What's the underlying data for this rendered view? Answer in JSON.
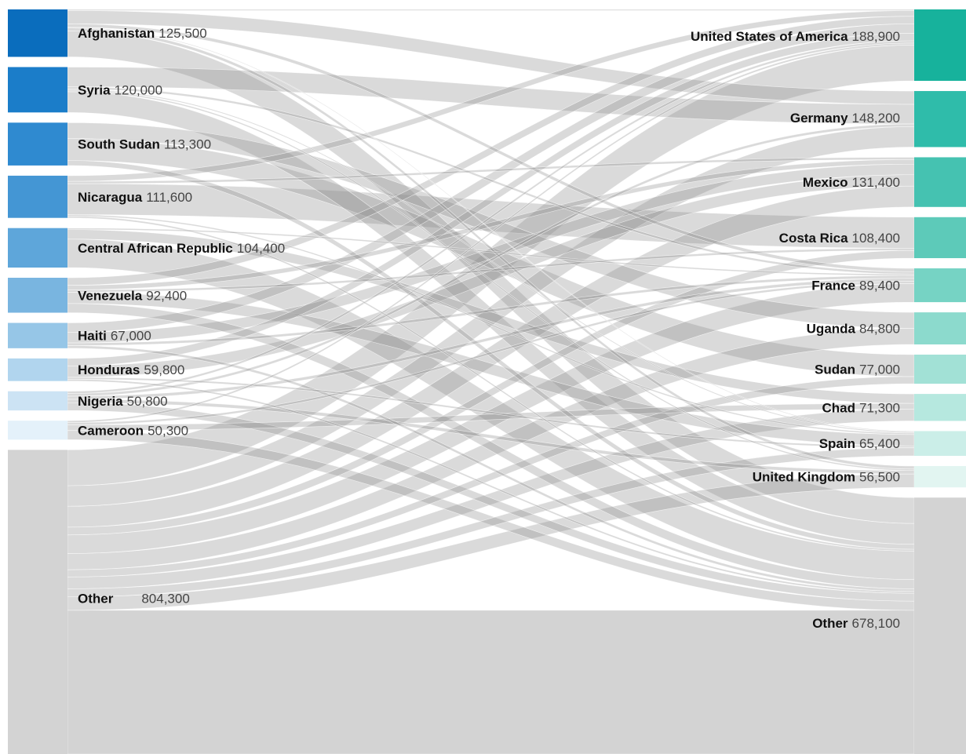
{
  "chart_data": {
    "type": "sankey",
    "title": "",
    "sources": [
      {
        "name": "Afghanistan",
        "value_label": "125,500",
        "value": 125500,
        "color": "#0a6dbd"
      },
      {
        "name": "Syria",
        "value_label": "120,000",
        "value": 120000,
        "color": "#1b7dc9"
      },
      {
        "name": "South Sudan",
        "value_label": "113,300",
        "value": 113300,
        "color": "#2f8ad0"
      },
      {
        "name": "Nicaragua",
        "value_label": "111,600",
        "value": 111600,
        "color": "#4496d4"
      },
      {
        "name": "Central African Republic",
        "value_label": "104,400",
        "value": 104400,
        "color": "#5ea6da"
      },
      {
        "name": "Venezuela",
        "value_label": "92,400",
        "value": 92400,
        "color": "#79b5e0"
      },
      {
        "name": "Haiti",
        "value_label": "67,000",
        "value": 67000,
        "color": "#96c6e7"
      },
      {
        "name": "Honduras",
        "value_label": "59,800",
        "value": 59800,
        "color": "#b1d5ee"
      },
      {
        "name": "Nigeria",
        "value_label": "50,800",
        "value": 50800,
        "color": "#cce3f4"
      },
      {
        "name": "Cameroon",
        "value_label": "50,300",
        "value": 50300,
        "color": "#e4f1fa"
      },
      {
        "name": "Other",
        "value_label": "804,300",
        "value": 804300,
        "color": "#d3d3d3"
      }
    ],
    "targets": [
      {
        "name": "United States of America",
        "value_label": "188,900",
        "value": 188900,
        "color": "#17b29c"
      },
      {
        "name": "Germany",
        "value_label": "148,200",
        "value": 148200,
        "color": "#2fbcaa"
      },
      {
        "name": "Mexico",
        "value_label": "131,400",
        "value": 131400,
        "color": "#45c2b1"
      },
      {
        "name": "Costa Rica",
        "value_label": "108,400",
        "value": 108400,
        "color": "#5dcab9"
      },
      {
        "name": "France",
        "value_label": "89,400",
        "value": 89400,
        "color": "#76d3c4"
      },
      {
        "name": "Uganda",
        "value_label": "84,800",
        "value": 84800,
        "color": "#8cdacd"
      },
      {
        "name": "Sudan",
        "value_label": "77,000",
        "value": 77000,
        "color": "#a2e1d6"
      },
      {
        "name": "Chad",
        "value_label": "71,300",
        "value": 71300,
        "color": "#b6e8df"
      },
      {
        "name": "Spain",
        "value_label": "65,400",
        "value": 65400,
        "color": "#cbeee8"
      },
      {
        "name": "United Kingdom",
        "value_label": "56,500",
        "value": 56500,
        "color": "#e2f5f1"
      },
      {
        "name": "Other",
        "value_label": "678,100",
        "value": 678100,
        "color": "#d3d3d3"
      }
    ],
    "flows": [
      {
        "from": "Afghanistan",
        "to": "Germany",
        "value": 35000
      },
      {
        "from": "Afghanistan",
        "to": "France",
        "value": 9000
      },
      {
        "from": "Afghanistan",
        "to": "United Kingdom",
        "value": 8000
      },
      {
        "from": "Afghanistan",
        "to": "United States of America",
        "value": 3000
      },
      {
        "from": "Afghanistan",
        "to": "Spain",
        "value": 2000
      },
      {
        "from": "Afghanistan",
        "to": "Other",
        "value": 68500
      },
      {
        "from": "Syria",
        "to": "Germany",
        "value": 52000
      },
      {
        "from": "Syria",
        "to": "France",
        "value": 6000
      },
      {
        "from": "Syria",
        "to": "United Kingdom",
        "value": 4000
      },
      {
        "from": "Syria",
        "to": "Spain",
        "value": 3000
      },
      {
        "from": "Syria",
        "to": "Other",
        "value": 55000
      },
      {
        "from": "South Sudan",
        "to": "Uganda",
        "value": 42000
      },
      {
        "from": "South Sudan",
        "to": "Sudan",
        "value": 58000
      },
      {
        "from": "South Sudan",
        "to": "Other",
        "value": 13300
      },
      {
        "from": "Nicaragua",
        "to": "Costa Rica",
        "value": 82000
      },
      {
        "from": "Nicaragua",
        "to": "United States of America",
        "value": 15000
      },
      {
        "from": "Nicaragua",
        "to": "Mexico",
        "value": 6000
      },
      {
        "from": "Nicaragua",
        "to": "Spain",
        "value": 4000
      },
      {
        "from": "Nicaragua",
        "to": "Other",
        "value": 4600
      },
      {
        "from": "Central African Republic",
        "to": "Chad",
        "value": 25000
      },
      {
        "from": "Central African Republic",
        "to": "France",
        "value": 4000
      },
      {
        "from": "Central African Republic",
        "to": "Other",
        "value": 75400
      },
      {
        "from": "Venezuela",
        "to": "Spain",
        "value": 30000
      },
      {
        "from": "Venezuela",
        "to": "United States of America",
        "value": 20000
      },
      {
        "from": "Venezuela",
        "to": "Mexico",
        "value": 12000
      },
      {
        "from": "Venezuela",
        "to": "Costa Rica",
        "value": 6000
      },
      {
        "from": "Venezuela",
        "to": "Other",
        "value": 24400
      },
      {
        "from": "Haiti",
        "to": "United States of America",
        "value": 25000
      },
      {
        "from": "Haiti",
        "to": "Mexico",
        "value": 28000
      },
      {
        "from": "Haiti",
        "to": "France",
        "value": 7000
      },
      {
        "from": "Haiti",
        "to": "Other",
        "value": 7000
      },
      {
        "from": "Honduras",
        "to": "Mexico",
        "value": 30000
      },
      {
        "from": "Honduras",
        "to": "United States of America",
        "value": 20000
      },
      {
        "from": "Honduras",
        "to": "Spain",
        "value": 5000
      },
      {
        "from": "Honduras",
        "to": "Other",
        "value": 4800
      },
      {
        "from": "Nigeria",
        "to": "United Kingdom",
        "value": 9000
      },
      {
        "from": "Nigeria",
        "to": "France",
        "value": 8000
      },
      {
        "from": "Nigeria",
        "to": "Germany",
        "value": 7000
      },
      {
        "from": "Nigeria",
        "to": "United States of America",
        "value": 6000
      },
      {
        "from": "Nigeria",
        "to": "Other",
        "value": 20800
      },
      {
        "from": "Cameroon",
        "to": "Chad",
        "value": 15000
      },
      {
        "from": "Cameroon",
        "to": "France",
        "value": 6000
      },
      {
        "from": "Cameroon",
        "to": "United States of America",
        "value": 5000
      },
      {
        "from": "Cameroon",
        "to": "Other",
        "value": 24300
      },
      {
        "from": "Other",
        "to": "United States of America",
        "value": 94900
      },
      {
        "from": "Other",
        "to": "Germany",
        "value": 54200
      },
      {
        "from": "Other",
        "to": "Mexico",
        "value": 55400
      },
      {
        "from": "Other",
        "to": "Costa Rica",
        "value": 20400
      },
      {
        "from": "Other",
        "to": "France",
        "value": 49400
      },
      {
        "from": "Other",
        "to": "Uganda",
        "value": 42800
      },
      {
        "from": "Other",
        "to": "Sudan",
        "value": 19000
      },
      {
        "from": "Other",
        "to": "Chad",
        "value": 31300
      },
      {
        "from": "Other",
        "to": "Spain",
        "value": 21400
      },
      {
        "from": "Other",
        "to": "United Kingdom",
        "value": 35500
      },
      {
        "from": "Other",
        "to": "Other",
        "value": 380000
      }
    ]
  }
}
